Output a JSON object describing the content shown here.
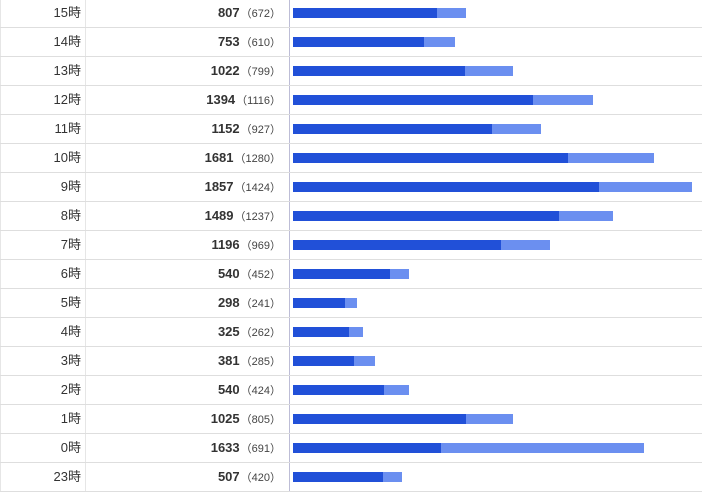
{
  "stats": {
    "colors": {
      "total_bar": "#6b8ff0",
      "unique_bar": "#2150d8"
    },
    "bar_scale_max": 1857,
    "rows": [
      {
        "hour": "15時",
        "count": "807",
        "sub": "（672）",
        "total": 807,
        "unique": 672
      },
      {
        "hour": "14時",
        "count": "753",
        "sub": "（610）",
        "total": 753,
        "unique": 610
      },
      {
        "hour": "13時",
        "count": "1022",
        "sub": "（799）",
        "total": 1022,
        "unique": 799
      },
      {
        "hour": "12時",
        "count": "1394",
        "sub": "（1116）",
        "total": 1394,
        "unique": 1116
      },
      {
        "hour": "11時",
        "count": "1152",
        "sub": "（927）",
        "total": 1152,
        "unique": 927
      },
      {
        "hour": "10時",
        "count": "1681",
        "sub": "（1280）",
        "total": 1681,
        "unique": 1280
      },
      {
        "hour": "9時",
        "count": "1857",
        "sub": "（1424）",
        "total": 1857,
        "unique": 1424
      },
      {
        "hour": "8時",
        "count": "1489",
        "sub": "（1237）",
        "total": 1489,
        "unique": 1237
      },
      {
        "hour": "7時",
        "count": "1196",
        "sub": "（969）",
        "total": 1196,
        "unique": 969
      },
      {
        "hour": "6時",
        "count": "540",
        "sub": "（452）",
        "total": 540,
        "unique": 452
      },
      {
        "hour": "5時",
        "count": "298",
        "sub": "（241）",
        "total": 298,
        "unique": 241
      },
      {
        "hour": "4時",
        "count": "325",
        "sub": "（262）",
        "total": 325,
        "unique": 262
      },
      {
        "hour": "3時",
        "count": "381",
        "sub": "（285）",
        "total": 381,
        "unique": 285
      },
      {
        "hour": "2時",
        "count": "540",
        "sub": "（424）",
        "total": 540,
        "unique": 424
      },
      {
        "hour": "1時",
        "count": "1025",
        "sub": "（805）",
        "total": 1025,
        "unique": 805
      },
      {
        "hour": "0時",
        "count": "1633",
        "sub": "（691）",
        "total": 1633,
        "unique": 691
      },
      {
        "hour": "23時",
        "count": "507",
        "sub": "（420）",
        "total": 507,
        "unique": 420
      }
    ]
  }
}
